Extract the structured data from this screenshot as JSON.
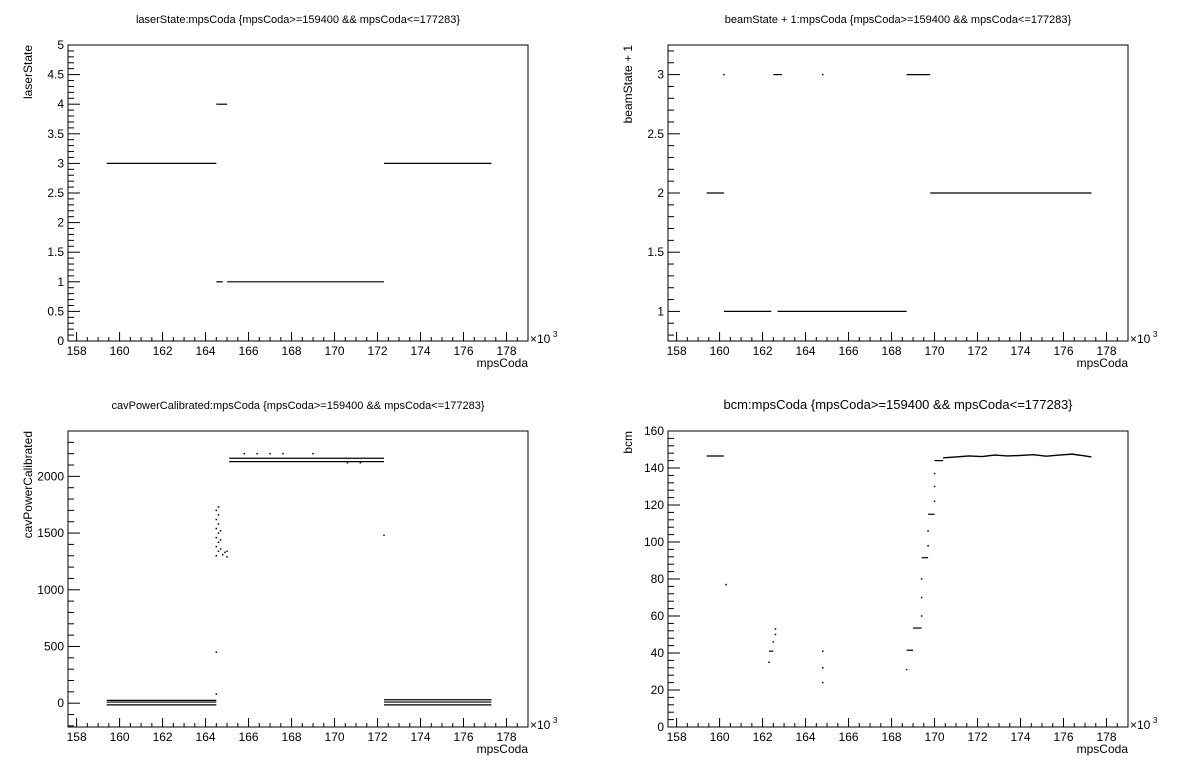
{
  "chart_data": [
    {
      "type": "scatter",
      "title": "laserState:mpsCoda {mpsCoda>=159400 && mpsCoda<=177283}",
      "xlabel": "mpsCoda",
      "ylabel": "laserState",
      "x_exponent": "×10",
      "x_exponent_power": "3",
      "xlim": [
        157.6,
        179.0
      ],
      "ylim": [
        0,
        5
      ],
      "xticks": [
        158,
        160,
        162,
        164,
        166,
        168,
        170,
        172,
        174,
        176,
        178
      ],
      "yticks": [
        0,
        0.5,
        1,
        1.5,
        2,
        2.5,
        3,
        3.5,
        4,
        4.5,
        5
      ],
      "segments": [
        {
          "x": [
            159.4,
            164.5
          ],
          "y": 3
        },
        {
          "x": [
            164.5,
            165.0
          ],
          "y": 4
        },
        {
          "x": [
            164.5,
            164.8
          ],
          "y": 1
        },
        {
          "x": [
            165.0,
            172.3
          ],
          "y": 1
        },
        {
          "x": [
            172.3,
            177.3
          ],
          "y": 3
        }
      ],
      "points": []
    },
    {
      "type": "scatter",
      "title": "beamState + 1:mpsCoda {mpsCoda>=159400 && mpsCoda<=177283}",
      "xlabel": "mpsCoda",
      "ylabel": "beamState + 1",
      "x_exponent": "×10",
      "x_exponent_power": "3",
      "xlim": [
        157.6,
        179.0
      ],
      "ylim": [
        0.75,
        3.25
      ],
      "xticks": [
        158,
        160,
        162,
        164,
        166,
        168,
        170,
        172,
        174,
        176,
        178
      ],
      "yticks": [
        1,
        1.5,
        2,
        2.5,
        3
      ],
      "segments": [
        {
          "x": [
            159.4,
            160.2
          ],
          "y": 2
        },
        {
          "x": [
            160.2,
            162.4
          ],
          "y": 1
        },
        {
          "x": [
            162.5,
            162.9
          ],
          "y": 3
        },
        {
          "x": [
            162.7,
            168.7
          ],
          "y": 1
        },
        {
          "x": [
            168.7,
            169.8
          ],
          "y": 3
        },
        {
          "x": [
            169.8,
            177.3
          ],
          "y": 2
        }
      ],
      "points": [
        {
          "x": 160.2,
          "y": 3
        },
        {
          "x": 164.8,
          "y": 3
        }
      ]
    },
    {
      "type": "scatter",
      "title": "cavPowerCalibrated:mpsCoda {mpsCoda>=159400 && mpsCoda<=177283}",
      "xlabel": "mpsCoda",
      "ylabel": "cavPowerCalibrated",
      "x_exponent": "×10",
      "x_exponent_power": "3",
      "xlim": [
        157.6,
        179.0
      ],
      "ylim": [
        -210,
        2400
      ],
      "xticks": [
        158,
        160,
        162,
        164,
        166,
        168,
        170,
        172,
        174,
        176,
        178
      ],
      "yticks": [
        0,
        500,
        1000,
        1500,
        2000
      ],
      "segments": [
        {
          "x": [
            159.4,
            164.5
          ],
          "y": 25
        },
        {
          "x": [
            159.4,
            164.5
          ],
          "y": 10
        },
        {
          "x": [
            159.4,
            164.5
          ],
          "y": -15
        },
        {
          "x": [
            165.1,
            172.3
          ],
          "y": 2160
        },
        {
          "x": [
            165.1,
            172.3
          ],
          "y": 2130
        },
        {
          "x": [
            172.3,
            177.3
          ],
          "y": 30
        },
        {
          "x": [
            172.3,
            177.3
          ],
          "y": 10
        },
        {
          "x": [
            172.3,
            177.3
          ],
          "y": -15
        }
      ],
      "points": [
        {
          "x": 164.5,
          "y": 450
        },
        {
          "x": 164.5,
          "y": 80
        },
        {
          "x": 164.5,
          "y": 1300
        },
        {
          "x": 164.6,
          "y": 1340
        },
        {
          "x": 164.5,
          "y": 1380
        },
        {
          "x": 164.6,
          "y": 1420
        },
        {
          "x": 164.5,
          "y": 1460
        },
        {
          "x": 164.6,
          "y": 1500
        },
        {
          "x": 164.5,
          "y": 1540
        },
        {
          "x": 164.6,
          "y": 1580
        },
        {
          "x": 164.5,
          "y": 1620
        },
        {
          "x": 164.6,
          "y": 1660
        },
        {
          "x": 164.5,
          "y": 1700
        },
        {
          "x": 164.6,
          "y": 1730
        },
        {
          "x": 164.7,
          "y": 1360
        },
        {
          "x": 164.7,
          "y": 1440
        },
        {
          "x": 164.7,
          "y": 1520
        },
        {
          "x": 164.8,
          "y": 1310
        },
        {
          "x": 164.9,
          "y": 1330
        },
        {
          "x": 165.0,
          "y": 1290
        },
        {
          "x": 165.0,
          "y": 1340
        },
        {
          "x": 165.8,
          "y": 2200
        },
        {
          "x": 166.4,
          "y": 2200
        },
        {
          "x": 167.0,
          "y": 2200
        },
        {
          "x": 167.6,
          "y": 2200
        },
        {
          "x": 169.0,
          "y": 2200
        },
        {
          "x": 170.6,
          "y": 2120
        },
        {
          "x": 171.2,
          "y": 2120
        },
        {
          "x": 172.3,
          "y": 1480
        }
      ]
    },
    {
      "type": "scatter",
      "title": "bcm:mpsCoda {mpsCoda>=159400 && mpsCoda<=177283}",
      "xlabel": "mpsCoda",
      "ylabel": "bcm",
      "x_exponent": "×10",
      "x_exponent_power": "3",
      "xlim": [
        157.6,
        179.0
      ],
      "ylim": [
        0,
        160
      ],
      "xticks": [
        158,
        160,
        162,
        164,
        166,
        168,
        170,
        172,
        174,
        176,
        178
      ],
      "yticks": [
        0,
        20,
        40,
        60,
        80,
        100,
        120,
        140,
        160
      ],
      "segments": [
        {
          "x": [
            159.4,
            160.2
          ],
          "y": 146.5
        },
        {
          "x": [
            162.3,
            162.5
          ],
          "y": 41
        },
        {
          "x": [
            168.7,
            169.0
          ],
          "y": 41.5
        },
        {
          "x": [
            169.0,
            169.4
          ],
          "y": 53.5
        },
        {
          "x": [
            169.4,
            169.7
          ],
          "y": 91.5
        },
        {
          "x": [
            169.7,
            170.0
          ],
          "y": 115
        },
        {
          "x": [
            170.0,
            170.4
          ],
          "y": 144
        }
      ],
      "line": {
        "x": [
          170.4,
          171.0,
          171.6,
          172.2,
          172.8,
          173.4,
          174.0,
          174.6,
          175.2,
          175.8,
          176.4,
          177.0,
          177.3
        ],
        "y": [
          145.5,
          146.0,
          146.5,
          146.2,
          147.0,
          146.5,
          146.8,
          147.2,
          146.4,
          147.0,
          147.5,
          146.5,
          146.0
        ]
      },
      "points": [
        {
          "x": 160.3,
          "y": 77
        },
        {
          "x": 162.3,
          "y": 35
        },
        {
          "x": 162.5,
          "y": 46
        },
        {
          "x": 162.6,
          "y": 50
        },
        {
          "x": 162.6,
          "y": 53
        },
        {
          "x": 164.8,
          "y": 41
        },
        {
          "x": 164.8,
          "y": 32
        },
        {
          "x": 164.8,
          "y": 24
        },
        {
          "x": 168.7,
          "y": 31
        },
        {
          "x": 169.4,
          "y": 60
        },
        {
          "x": 169.4,
          "y": 70
        },
        {
          "x": 169.4,
          "y": 80
        },
        {
          "x": 169.7,
          "y": 98
        },
        {
          "x": 169.7,
          "y": 106
        },
        {
          "x": 170.0,
          "y": 122
        },
        {
          "x": 170.0,
          "y": 130
        },
        {
          "x": 170.0,
          "y": 137
        }
      ]
    }
  ]
}
